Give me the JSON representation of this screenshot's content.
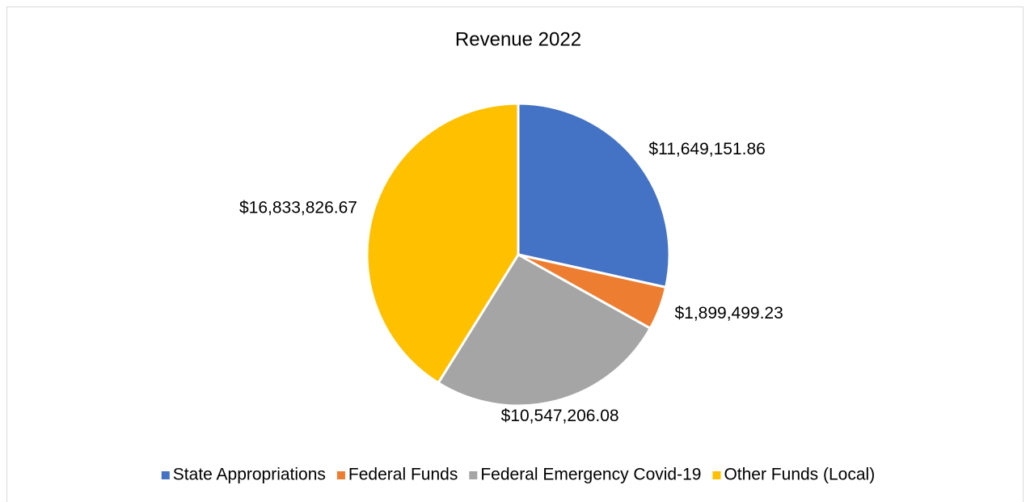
{
  "chart_data": {
    "type": "pie",
    "title": "Revenue 2022",
    "categories": [
      "State Appropriations",
      "Federal Funds",
      "Federal Emergency Covid-19",
      "Other Funds (Local)"
    ],
    "values": [
      11649151.86,
      1899499.23,
      10547206.08,
      16833826.67
    ],
    "value_labels": [
      "$11,649,151.86",
      "$1,899,499.23",
      "$10,547,206.08",
      "$16,833,826.67"
    ],
    "colors": [
      "#4472c4",
      "#ed7d31",
      "#a5a5a5",
      "#ffc000"
    ],
    "legend": "bottom"
  }
}
